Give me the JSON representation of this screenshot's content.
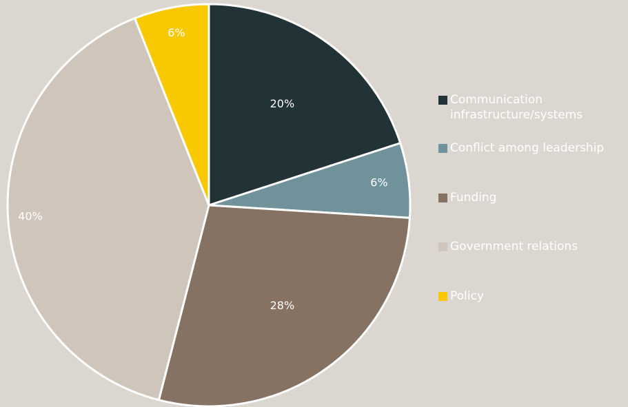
{
  "background_color": "#dcd6d0",
  "chart_data": {
    "type": "pie",
    "title": "",
    "legend_position": "right",
    "start_angle_deg": 0,
    "direction": "clockwise",
    "slices": [
      {
        "label": "Communication infrastructure/systems",
        "value": 20,
        "value_label": "20%",
        "color": "#223338"
      },
      {
        "label": "Conflict among leadership",
        "value": 6,
        "value_label": "6%",
        "color": "#6f929b"
      },
      {
        "label": "Funding",
        "value": 28,
        "value_label": "28%",
        "color": "#857262"
      },
      {
        "label": "Government relations",
        "value": 40,
        "value_label": "40%",
        "color": "#d0c5ba"
      },
      {
        "label": "Policy",
        "value": 6,
        "value_label": "6%",
        "color": "#f8c800"
      }
    ]
  }
}
